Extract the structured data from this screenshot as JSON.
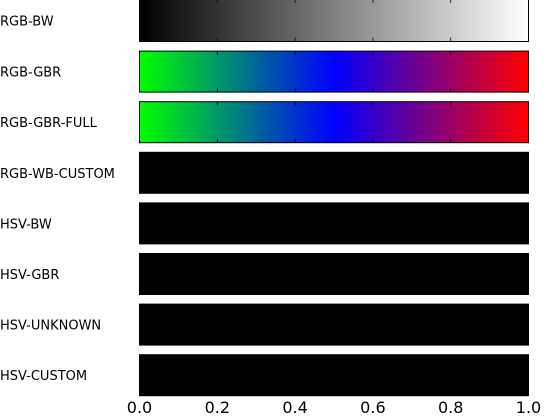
{
  "chart_data": {
    "type": "heatmap",
    "title": "",
    "xlabel": "",
    "ylabel": "",
    "xlim": [
      0.0,
      1.0
    ],
    "x_ticks": [
      "0.0",
      "0.2",
      "0.4",
      "0.6",
      "0.8",
      "1.0"
    ],
    "x_tick_values": [
      0.0,
      0.2,
      0.4,
      0.6,
      0.8,
      1.0
    ],
    "grid": true,
    "rows": [
      {
        "label": "RGB-BW",
        "stops": [
          {
            "pos": 0.0,
            "color": "#000000"
          },
          {
            "pos": 1.0,
            "color": "#ffffff"
          }
        ]
      },
      {
        "label": "RGB-GBR",
        "stops": [
          {
            "pos": 0.0,
            "color": "#00ff00"
          },
          {
            "pos": 0.5,
            "color": "#0000ff"
          },
          {
            "pos": 1.0,
            "color": "#ff0000"
          }
        ]
      },
      {
        "label": "RGB-GBR-FULL",
        "stops": [
          {
            "pos": 0.0,
            "color": "#00ff00"
          },
          {
            "pos": 0.5,
            "color": "#0000ff"
          },
          {
            "pos": 1.0,
            "color": "#ff0000"
          }
        ]
      },
      {
        "label": "RGB-WB-CUSTOM",
        "stops": [
          {
            "pos": 0.0,
            "color": "#000000"
          },
          {
            "pos": 1.0,
            "color": "#000000"
          }
        ]
      },
      {
        "label": "HSV-BW",
        "stops": [
          {
            "pos": 0.0,
            "color": "#000000"
          },
          {
            "pos": 1.0,
            "color": "#000000"
          }
        ]
      },
      {
        "label": "HSV-GBR",
        "stops": [
          {
            "pos": 0.0,
            "color": "#000000"
          },
          {
            "pos": 1.0,
            "color": "#000000"
          }
        ]
      },
      {
        "label": "HSV-UNKNOWN",
        "stops": [
          {
            "pos": 0.0,
            "color": "#000000"
          },
          {
            "pos": 1.0,
            "color": "#000000"
          }
        ]
      },
      {
        "label": "HSV-CUSTOM",
        "stops": [
          {
            "pos": 0.0,
            "color": "#000000"
          },
          {
            "pos": 1.0,
            "color": "#000000"
          }
        ]
      }
    ]
  }
}
